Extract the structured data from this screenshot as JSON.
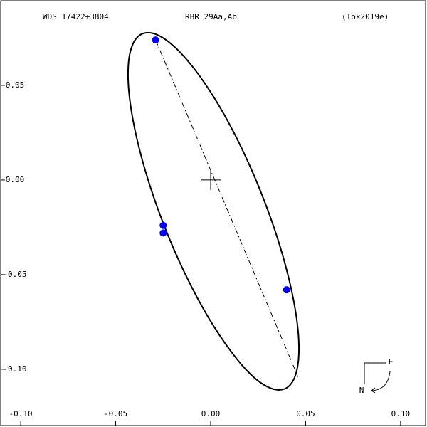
{
  "chart_data": {
    "type": "orbit",
    "header": {
      "left": "WDS 17422+3804",
      "center": "RBR  29Aa,Ab",
      "right": "(Tok2019e)"
    },
    "compass": {
      "east": "E",
      "north": "N"
    },
    "xlim": [
      -0.1109,
      0.1139
    ],
    "ylim": [
      -0.1305,
      0.0951
    ],
    "xticks": [
      {
        "value": -0.1,
        "label": "-0.10"
      },
      {
        "value": -0.05,
        "label": "-0.05"
      },
      {
        "value": 0,
        "label": "0.00"
      },
      {
        "value": 0.05,
        "label": "0.05"
      },
      {
        "value": 0.1,
        "label": "0.10"
      }
    ],
    "yticks": [
      {
        "value": -0.1,
        "label": "-0.10"
      },
      {
        "value": -0.05,
        "label": "-0.05"
      },
      {
        "value": 0,
        "label": "0.00"
      },
      {
        "value": 0.05,
        "label": "0.05"
      }
    ],
    "orbit": {
      "color": "#000000",
      "x": [
        0.0389,
        0.0441,
        0.0464,
        0.0456,
        0.0418,
        0.0353,
        0.0265,
        0.016,
        0.0045,
        -0.0073,
        -0.0184,
        -0.0281,
        -0.0359,
        -0.0411,
        -0.0434,
        -0.0426,
        -0.0388,
        -0.0323,
        -0.0235,
        -0.013,
        -0.0015,
        0.0103,
        0.0213,
        0.0311
      ],
      "y": [
        -0.1104,
        -0.1046,
        -0.0928,
        -0.0758,
        -0.0548,
        -0.0311,
        -0.0065,
        0.0175,
        0.0391,
        0.057,
        0.0698,
        0.0767,
        0.0773,
        0.0715,
        0.0597,
        0.0427,
        0.0217,
        -0.002,
        -0.0266,
        -0.0505,
        -0.0721,
        -0.09,
        -0.1029,
        -0.1098
      ]
    },
    "node_line": {
      "x": [
        -0.029,
        0.046
      ],
      "y": [
        0.074,
        -0.104
      ]
    },
    "observations": {
      "color": "#0000ff",
      "x": [
        -0.029,
        -0.025,
        -0.025,
        0.04
      ],
      "y": [
        0.074,
        -0.024,
        -0.028,
        -0.058
      ]
    }
  }
}
